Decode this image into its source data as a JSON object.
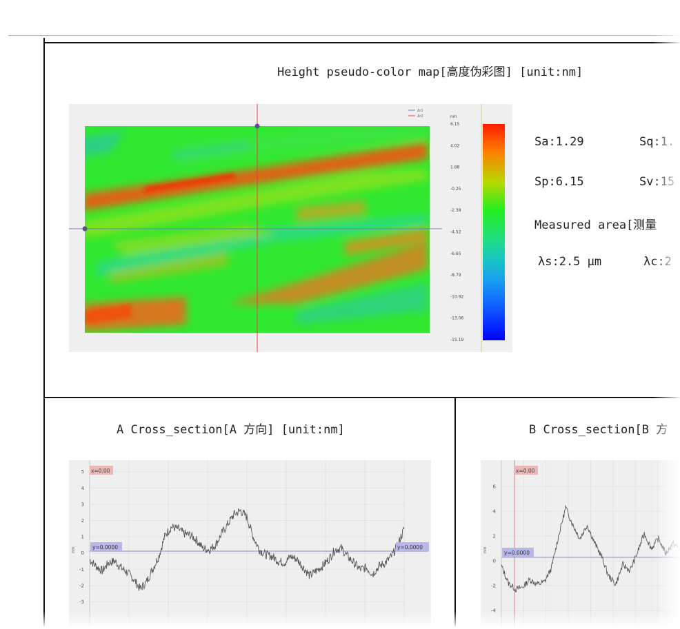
{
  "heightmap": {
    "title": "Height pseudo-color map[高度伪彩图]  [unit:nm]",
    "legend": [
      "Δr1",
      "Δr2"
    ],
    "colorbar_unit": "nm",
    "colorbar_ticks": [
      "6.15",
      "4.02",
      "1.88",
      "-0.25",
      "-2.38",
      "-4.52",
      "-6.65",
      "-8.79",
      "-10.92",
      "-13.06",
      "-15.19"
    ],
    "colors": {
      "hi": "#ff2a00",
      "mid": "#22ee22",
      "lo": "#0000ff",
      "crosshair_v": "#e04040",
      "crosshair_h": "#7777bb"
    }
  },
  "stats": {
    "sa": "Sa:1.29",
    "sq": "Sq:1.",
    "sp": "Sp:6.15",
    "sv": "Sv:15",
    "area": "Measured area[测量",
    "ls": "λs:2.5 μm",
    "lc": "λc:2"
  },
  "section_a": {
    "title": "A Cross_section[A 方向]  [unit:nm]",
    "x_label": "x=0.00",
    "y_label": "y=0.0000",
    "y_label_right": "y=0.0000",
    "yaxis_unit": "nm",
    "y_ticks": [
      "5",
      "4",
      "3",
      "2",
      "1",
      "0",
      "-1",
      "-2",
      "-3"
    ]
  },
  "section_b": {
    "title": "B Cross_section[B 方",
    "x_label": "x=0.00",
    "y_label": "y=0.0000",
    "yaxis_unit": "nm",
    "y_ticks": [
      "6",
      "4",
      "2",
      "0",
      "-2",
      "-4"
    ]
  },
  "chart_data": [
    {
      "type": "heatmap",
      "title": "Height pseudo-color map[高度伪彩图]  [unit:nm]",
      "zlim": [
        -15.19,
        6.15
      ],
      "colorbar_ticks": [
        6.15,
        4.02,
        1.88,
        -0.25,
        -2.38,
        -4.52,
        -6.65,
        -8.79,
        -10.92,
        -13.06,
        -15.19
      ],
      "legend": [
        "Δr1",
        "Δr2"
      ]
    },
    {
      "type": "line",
      "title": "A Cross_section[A 方向]  [unit:nm]",
      "ylabel": "nm",
      "ylim": [
        -3.4,
        5.2
      ],
      "x": [
        0,
        0.02,
        0.04,
        0.06,
        0.08,
        0.1,
        0.12,
        0.14,
        0.16,
        0.18,
        0.2,
        0.22,
        0.24,
        0.26,
        0.28,
        0.3,
        0.32,
        0.34,
        0.36,
        0.38,
        0.4,
        0.42,
        0.44,
        0.46,
        0.48,
        0.5,
        0.52,
        0.54,
        0.56,
        0.58,
        0.6,
        0.62,
        0.64,
        0.66,
        0.68,
        0.7,
        0.72,
        0.74,
        0.76,
        0.78,
        0.8,
        0.82,
        0.84,
        0.86,
        0.88,
        0.9,
        0.92,
        0.94,
        0.96,
        0.98,
        1.0
      ],
      "y": [
        -0.4,
        -0.8,
        -1.1,
        -0.6,
        -0.5,
        -0.9,
        -1.2,
        -1.6,
        -2.2,
        -1.8,
        -1.0,
        -0.2,
        1.1,
        1.6,
        1.5,
        1.2,
        1.1,
        0.8,
        0.3,
        0.2,
        0.5,
        1.2,
        1.8,
        2.4,
        2.6,
        2.2,
        1.0,
        0.2,
        -0.1,
        -0.2,
        -0.5,
        -0.6,
        -0.2,
        -0.4,
        -0.9,
        -1.4,
        -1.1,
        -0.8,
        -0.4,
        0.2,
        0.3,
        -0.2,
        -0.6,
        -1.0,
        -0.9,
        -1.3,
        -0.8,
        -0.6,
        -0.2,
        0.5,
        1.5
      ]
    },
    {
      "type": "line",
      "title": "B Cross_section[B 方",
      "ylabel": "nm",
      "ylim": [
        -4.6,
        7.0
      ],
      "x": [
        0,
        0.04,
        0.08,
        0.12,
        0.16,
        0.2,
        0.24,
        0.28,
        0.32,
        0.36,
        0.4,
        0.44,
        0.48,
        0.52,
        0.56,
        0.6,
        0.64,
        0.68,
        0.72,
        0.76,
        0.8,
        0.84,
        0.88,
        0.92,
        0.96,
        1.0
      ],
      "y": [
        -0.4,
        -1.8,
        -2.3,
        -2.1,
        -1.5,
        -1.9,
        -1.7,
        -0.6,
        2.0,
        4.3,
        2.9,
        1.8,
        2.9,
        1.5,
        0.4,
        -1.2,
        -1.9,
        -0.3,
        -0.8,
        0.6,
        2.2,
        1.0,
        1.8,
        0.6,
        1.4,
        1.0
      ]
    }
  ]
}
